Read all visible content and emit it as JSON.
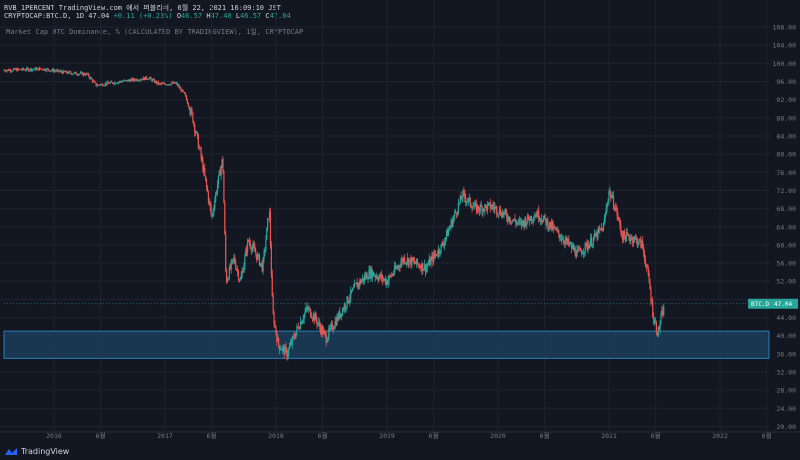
{
  "header": {
    "line1": "RVB_1PERCENT TradingView.com 에서 퍼블리쉬, 6월 22, 2021 16:09:10 JST",
    "symbol": "CRYPTOCAP:BTC.D, 1D",
    "last": "47.04",
    "change": "+0.11 (+0.23%)",
    "ohlc": [
      {
        "k": "O",
        "v": "46.57"
      },
      {
        "k": "H",
        "v": "47.40"
      },
      {
        "k": "L",
        "v": "46.57"
      },
      {
        "k": "C",
        "v": "47.04"
      }
    ],
    "line3": "Market Cap BTC Dominance, % (CALCULATED BY TRADINGVIEW), 1일, CRYPTOCAP"
  },
  "brand": "TradingView",
  "colors": {
    "background": "#131722",
    "up": "#26a69a",
    "down": "#ef5350",
    "zone_fill": "#1c3d5a",
    "zone_border": "#2962ff",
    "price_tag": "#26a69a"
  },
  "chart_data": {
    "type": "candlestick",
    "price_tag_label": "BTC.D",
    "last_price": "47.04",
    "y_ticks": [
      "108.00",
      "104.00",
      "100.00",
      "96.00",
      "92.00",
      "88.00",
      "84.00",
      "80.00",
      "76.00",
      "72.00",
      "68.00",
      "64.00",
      "60.00",
      "56.00",
      "52.00",
      "48.00",
      "44.00",
      "40.00",
      "36.00",
      "32.00",
      "28.00",
      "24.00",
      "20.00"
    ],
    "ylim": [
      19,
      110
    ],
    "x_ticks": [
      {
        "label": "2016",
        "t": 2016.0
      },
      {
        "label": "6월",
        "t": 2016.42
      },
      {
        "label": "2017",
        "t": 2017.0
      },
      {
        "label": "6월",
        "t": 2017.42
      },
      {
        "label": "2018",
        "t": 2018.0
      },
      {
        "label": "6월",
        "t": 2018.42
      },
      {
        "label": "2019",
        "t": 2019.0
      },
      {
        "label": "6월",
        "t": 2019.42
      },
      {
        "label": "2020",
        "t": 2020.0
      },
      {
        "label": "6월",
        "t": 2020.42
      },
      {
        "label": "2021",
        "t": 2021.0
      },
      {
        "label": "6월",
        "t": 2021.42
      },
      {
        "label": "2022",
        "t": 2022.0
      },
      {
        "label": "6월",
        "t": 2022.42
      }
    ],
    "xlim": [
      2015.55,
      2022.45
    ],
    "support_zone": [
      35.0,
      41.0
    ],
    "path": [
      [
        2015.55,
        98.5
      ],
      [
        2015.9,
        98.8
      ],
      [
        2016.1,
        98.0
      ],
      [
        2016.3,
        97.6
      ],
      [
        2016.38,
        95.2
      ],
      [
        2016.6,
        96.0
      ],
      [
        2016.85,
        96.8
      ],
      [
        2016.95,
        95.4
      ],
      [
        2017.1,
        95.6
      ],
      [
        2017.18,
        93.0
      ],
      [
        2017.25,
        88.0
      ],
      [
        2017.32,
        80.0
      ],
      [
        2017.38,
        72.0
      ],
      [
        2017.42,
        66.0
      ],
      [
        2017.47,
        73.0
      ],
      [
        2017.52,
        79.0
      ],
      [
        2017.55,
        52.0
      ],
      [
        2017.62,
        57.0
      ],
      [
        2017.68,
        52.0
      ],
      [
        2017.75,
        61.0
      ],
      [
        2017.82,
        58.0
      ],
      [
        2017.88,
        55.0
      ],
      [
        2017.94,
        68.0
      ],
      [
        2017.97,
        45.0
      ],
      [
        2018.02,
        38.0
      ],
      [
        2018.1,
        36.0
      ],
      [
        2018.2,
        42.0
      ],
      [
        2018.28,
        46.0
      ],
      [
        2018.35,
        44.0
      ],
      [
        2018.45,
        39.5
      ],
      [
        2018.58,
        45.0
      ],
      [
        2018.72,
        51.0
      ],
      [
        2018.85,
        54.0
      ],
      [
        2019.0,
        52.0
      ],
      [
        2019.15,
        57.0
      ],
      [
        2019.35,
        55.0
      ],
      [
        2019.5,
        60.0
      ],
      [
        2019.6,
        66.0
      ],
      [
        2019.68,
        71.0
      ],
      [
        2019.8,
        68.0
      ],
      [
        2019.95,
        68.5
      ],
      [
        2020.1,
        66.0
      ],
      [
        2020.2,
        64.5
      ],
      [
        2020.35,
        67.0
      ],
      [
        2020.48,
        64.0
      ],
      [
        2020.6,
        61.0
      ],
      [
        2020.72,
        58.0
      ],
      [
        2020.85,
        61.0
      ],
      [
        2020.95,
        64.0
      ],
      [
        2021.0,
        72.0
      ],
      [
        2021.06,
        68.0
      ],
      [
        2021.12,
        62.0
      ],
      [
        2021.22,
        61.5
      ],
      [
        2021.3,
        60.0
      ],
      [
        2021.36,
        52.0
      ],
      [
        2021.4,
        44.0
      ],
      [
        2021.44,
        40.5
      ],
      [
        2021.47,
        44.0
      ],
      [
        2021.5,
        46.5
      ]
    ]
  }
}
